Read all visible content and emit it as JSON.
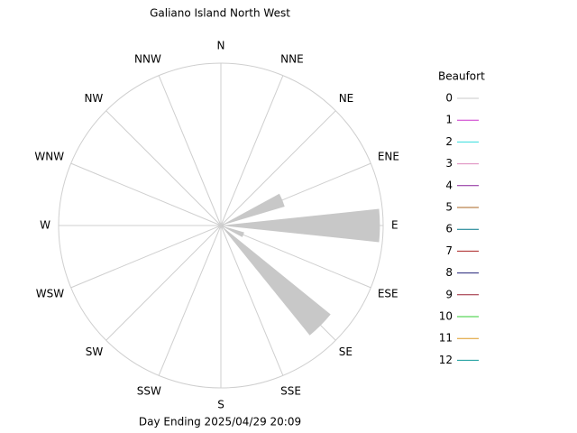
{
  "chart_data": {
    "type": "wind-rose",
    "title": "Galiano Island North West",
    "footer": "Day Ending 2025/04/29 20:09",
    "directions": [
      "N",
      "NNE",
      "NE",
      "ENE",
      "E",
      "ESE",
      "SE",
      "SSE",
      "S",
      "SSW",
      "SW",
      "WSW",
      "W",
      "WNW",
      "NW",
      "NNW"
    ],
    "values": [
      0,
      0,
      0,
      0.41,
      0.98,
      0.15,
      0.87,
      0,
      0,
      0,
      0,
      0,
      0,
      0,
      0,
      0
    ],
    "color": "#c8c8c8",
    "rlim": [
      0,
      1
    ],
    "legend": {
      "title": "Beaufort",
      "series": [
        {
          "name": "0",
          "color": "#c8c8c8"
        },
        {
          "name": "1",
          "color": "#cc33cc"
        },
        {
          "name": "2",
          "color": "#33dddd"
        },
        {
          "name": "3",
          "color": "#dd88bb"
        },
        {
          "name": "4",
          "color": "#882299"
        },
        {
          "name": "5",
          "color": "#aa6622"
        },
        {
          "name": "6",
          "color": "#007788"
        },
        {
          "name": "7",
          "color": "#aa2222"
        },
        {
          "name": "8",
          "color": "#222277"
        },
        {
          "name": "9",
          "color": "#992233"
        },
        {
          "name": "10",
          "color": "#33cc33"
        },
        {
          "name": "11",
          "color": "#dd9922"
        },
        {
          "name": "12",
          "color": "#119999"
        }
      ]
    }
  }
}
